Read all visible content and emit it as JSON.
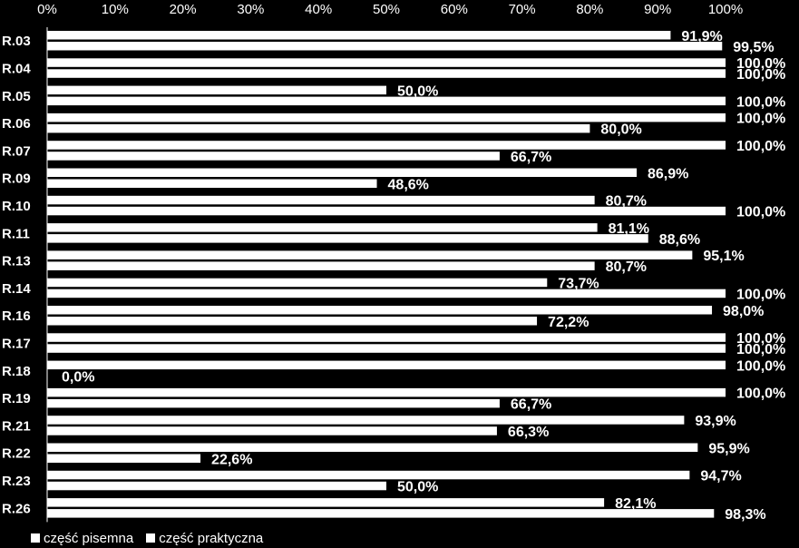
{
  "chart_data": {
    "type": "bar",
    "orientation": "horizontal",
    "categories": [
      "R.03",
      "R.04",
      "R.05",
      "R.06",
      "R.07",
      "R.09",
      "R.10",
      "R.11",
      "R.13",
      "R.14",
      "R.16",
      "R.17",
      "R.18",
      "R.19",
      "R.21",
      "R.22",
      "R.23",
      "R.26"
    ],
    "series": [
      {
        "name": "część pisemna",
        "values": [
          91.9,
          100,
          50,
          100,
          100,
          86.9,
          80.7,
          81.1,
          95.1,
          73.7,
          98,
          100,
          100,
          100,
          93.9,
          95.9,
          94.7,
          82.1
        ],
        "labels": [
          "91,9%",
          "100,0%",
          "50,0%",
          "100,0%",
          "100,0%",
          "86,9%",
          "80,7%",
          "81,1%",
          "95,1%",
          "73,7%",
          "98,0%",
          "100,0%",
          "100,0%",
          "100,0%",
          "93,9%",
          "95,9%",
          "94,7%",
          "82,1%"
        ]
      },
      {
        "name": "część praktyczna",
        "values": [
          99.5,
          100,
          100,
          80,
          66.7,
          48.6,
          100,
          88.6,
          80.7,
          100,
          72.2,
          100,
          0,
          66.7,
          66.3,
          22.6,
          50,
          98.3
        ],
        "labels": [
          "99,5%",
          "100,0%",
          "100,0%",
          "80,0%",
          "66,7%",
          "48,6%",
          "100,0%",
          "88,6%",
          "80,7%",
          "100,0%",
          "72,2%",
          "100,0%",
          "0,0%",
          "66,7%",
          "66,3%",
          "22,6%",
          "50,0%",
          "98,3%"
        ]
      }
    ],
    "x_ticks": [
      "0%",
      "10%",
      "20%",
      "30%",
      "40%",
      "50%",
      "60%",
      "70%",
      "80%",
      "90%",
      "100%"
    ],
    "xlim": [
      0,
      100
    ],
    "axis_position": "top",
    "legend_position": "bottom-left",
    "colors": {
      "background": "#000000",
      "bar": "#ffffff",
      "text": "#ffffff"
    }
  },
  "legend": [
    {
      "label": "część pisemna",
      "icon": "white-square"
    },
    {
      "label": "część praktyczna",
      "icon": "white-square"
    }
  ]
}
